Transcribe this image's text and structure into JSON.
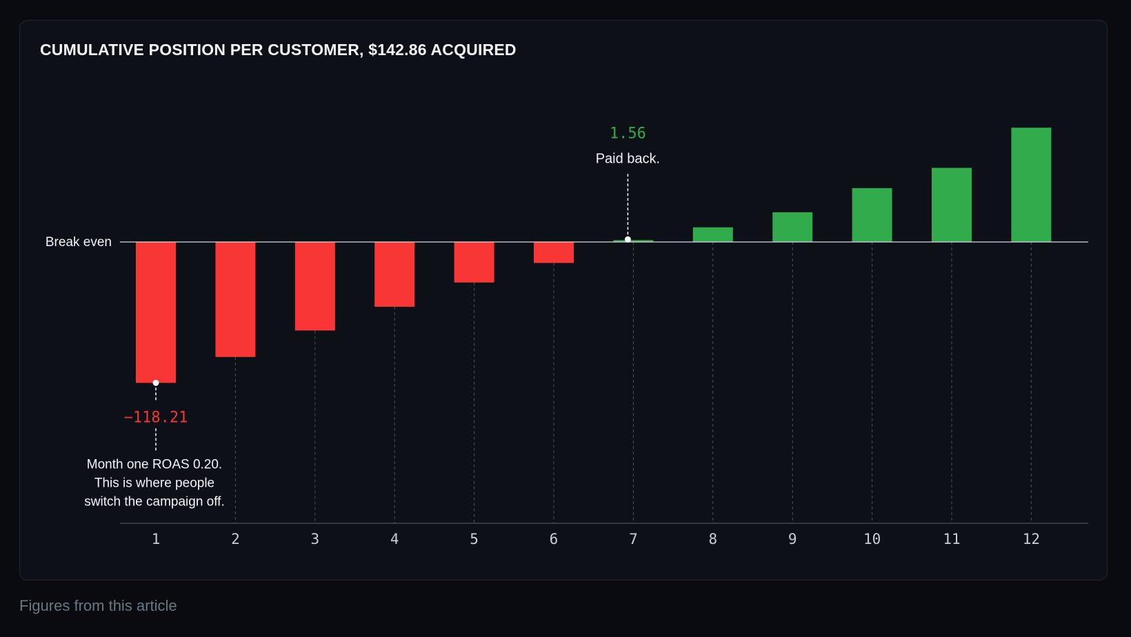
{
  "caption": "Figures from this article",
  "colors": {
    "negative": "#f83636",
    "positive": "#31ab4b",
    "background": "#0d1017",
    "text": "#f2f4f7",
    "muted": "#c9ced6"
  },
  "chart_data": {
    "type": "bar",
    "title": "CUMULATIVE POSITION PER CUSTOMER, $142.86 ACQUIRED",
    "xlabel": "",
    "ylabel": "",
    "categories": [
      "1",
      "2",
      "3",
      "4",
      "5",
      "6",
      "7",
      "8",
      "9",
      "10",
      "11",
      "12"
    ],
    "values": [
      -118.21,
      -96.5,
      -74.3,
      -54.4,
      -34.0,
      -17.6,
      1.56,
      12.3,
      24.9,
      45.2,
      62.2,
      95.9
    ],
    "ylim": [
      -236,
      130
    ],
    "grid": false,
    "reference_line": {
      "label": "Break even",
      "value": 0
    },
    "annotations": [
      {
        "category": "1",
        "value_label": "−118.21",
        "note_lines": [
          "Month one ROAS 0.20.",
          "This is where people",
          "switch the campaign off."
        ]
      },
      {
        "category": "7",
        "value_label": "1.56",
        "note_lines": [
          "Paid back."
        ]
      }
    ]
  }
}
